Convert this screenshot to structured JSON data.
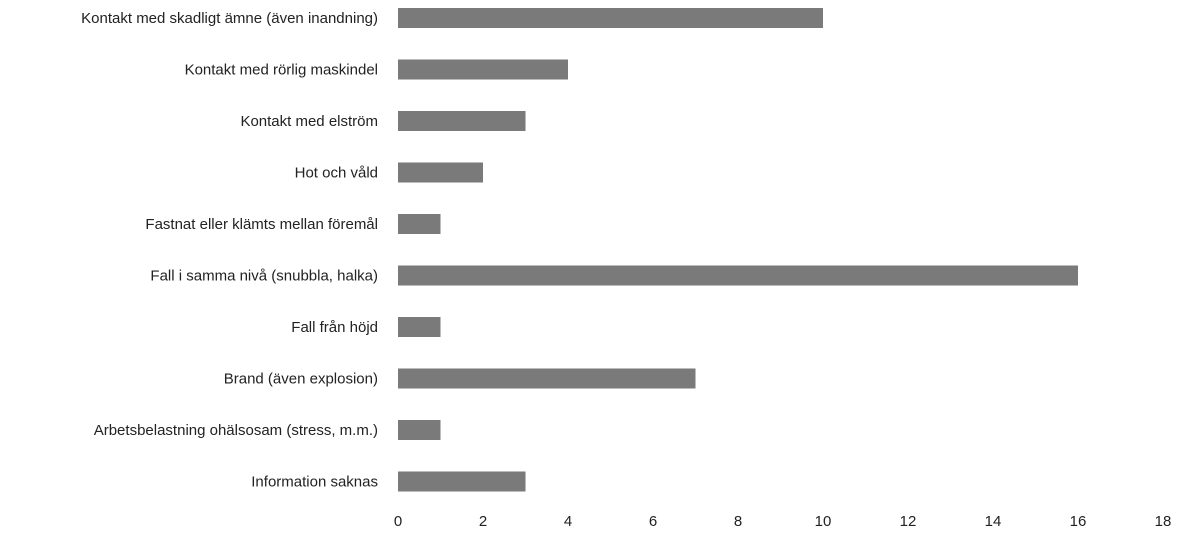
{
  "chart_data": {
    "type": "bar",
    "orientation": "horizontal",
    "title": "",
    "xlabel": "",
    "ylabel": "",
    "categories": [
      "Kontakt med skadligt ämne (även inandning)",
      "Kontakt med rörlig maskindel",
      "Kontakt med elström",
      "Hot och våld",
      "Fastnat eller klämts mellan föremål",
      "Fall i samma nivå (snubbla, halka)",
      "Fall från höjd",
      "Brand (även explosion)",
      "Arbetsbelastning ohälsosam (stress, m.m.)",
      "Information saknas"
    ],
    "values": [
      10,
      4,
      3,
      2,
      1,
      16,
      1,
      7,
      1,
      3
    ],
    "xlim": [
      0,
      18
    ],
    "xticks": [
      "0",
      "2",
      "4",
      "6",
      "8",
      "10",
      "12",
      "14",
      "16",
      "18"
    ],
    "legend": "none",
    "grid": false,
    "colors": {
      "bar": "#7a7a7a"
    }
  }
}
